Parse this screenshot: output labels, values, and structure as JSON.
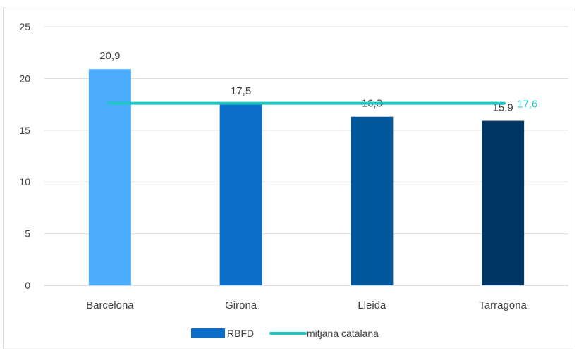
{
  "chart_data": {
    "type": "bar",
    "categories": [
      "Barcelona",
      "Girona",
      "Lleida",
      "Tarragona"
    ],
    "series": [
      {
        "name": "RBFD",
        "type": "bar",
        "values": [
          20.9,
          17.5,
          16.3,
          15.9
        ],
        "value_labels": [
          "20,9",
          "17,5",
          "16,3",
          "15,9"
        ],
        "colors": [
          "#4BACFE",
          "#0B6FCA",
          "#00579C",
          "#003663"
        ],
        "legend_color": "#0B6FCA"
      },
      {
        "name": "mitjana catalana",
        "type": "line",
        "values": [
          17.6,
          17.6,
          17.6,
          17.6
        ],
        "end_label": "17,6",
        "color": "#1DC8C4"
      }
    ],
    "ylim": [
      0,
      25
    ],
    "yticks": [
      0,
      5,
      10,
      15,
      20,
      25
    ],
    "grid": true,
    "legend_position": "bottom",
    "title": "",
    "xlabel": "",
    "ylabel": ""
  }
}
